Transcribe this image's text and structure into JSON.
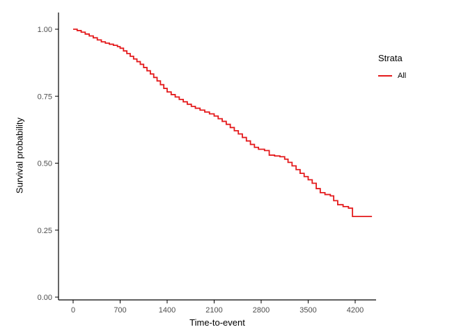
{
  "figure": {
    "background": "#ffffff"
  },
  "chart_data": {
    "type": "line",
    "subtype": "kaplan-meier-step",
    "title": "",
    "xlabel": "Time-to-event",
    "ylabel": "Survival probability",
    "xlim": [
      0,
      4450
    ],
    "ylim": [
      0,
      1
    ],
    "grid": false,
    "axis_color": "#000000",
    "tick_label_color": "#4d4d4d",
    "x_ticks": {
      "values": [
        0,
        700,
        1400,
        2100,
        2800,
        3500,
        4200
      ],
      "labels": [
        "0",
        "700",
        "1400",
        "2100",
        "2800",
        "3500",
        "4200"
      ]
    },
    "y_ticks": {
      "values": [
        0,
        0.25,
        0.5,
        0.75,
        1
      ],
      "labels": [
        "0.00",
        "0.25",
        "0.50",
        "0.75",
        "1.00"
      ]
    },
    "legend": {
      "title": "Strata",
      "position": "right",
      "items": [
        {
          "label": "All",
          "color": "#E41A1C"
        }
      ]
    },
    "series": [
      {
        "name": "All",
        "color": "#E41A1C",
        "step": "hv",
        "points": [
          [
            0,
            1.0
          ],
          [
            60,
            0.995
          ],
          [
            120,
            0.989
          ],
          [
            180,
            0.982
          ],
          [
            240,
            0.975
          ],
          [
            300,
            0.968
          ],
          [
            360,
            0.96
          ],
          [
            420,
            0.953
          ],
          [
            480,
            0.948
          ],
          [
            540,
            0.944
          ],
          [
            600,
            0.94
          ],
          [
            660,
            0.935
          ],
          [
            700,
            0.929
          ],
          [
            750,
            0.919
          ],
          [
            800,
            0.909
          ],
          [
            850,
            0.899
          ],
          [
            900,
            0.889
          ],
          [
            950,
            0.879
          ],
          [
            1000,
            0.869
          ],
          [
            1050,
            0.857
          ],
          [
            1100,
            0.845
          ],
          [
            1150,
            0.833
          ],
          [
            1200,
            0.82
          ],
          [
            1250,
            0.807
          ],
          [
            1300,
            0.793
          ],
          [
            1350,
            0.779
          ],
          [
            1400,
            0.766
          ],
          [
            1460,
            0.756
          ],
          [
            1520,
            0.747
          ],
          [
            1580,
            0.738
          ],
          [
            1640,
            0.729
          ],
          [
            1700,
            0.72
          ],
          [
            1760,
            0.712
          ],
          [
            1820,
            0.705
          ],
          [
            1890,
            0.698
          ],
          [
            1960,
            0.691
          ],
          [
            2030,
            0.684
          ],
          [
            2100,
            0.676
          ],
          [
            2160,
            0.666
          ],
          [
            2220,
            0.656
          ],
          [
            2280,
            0.645
          ],
          [
            2340,
            0.633
          ],
          [
            2400,
            0.621
          ],
          [
            2460,
            0.609
          ],
          [
            2520,
            0.596
          ],
          [
            2580,
            0.583
          ],
          [
            2640,
            0.57
          ],
          [
            2700,
            0.559
          ],
          [
            2760,
            0.552
          ],
          [
            2850,
            0.547
          ],
          [
            2920,
            0.53
          ],
          [
            3000,
            0.527
          ],
          [
            3080,
            0.524
          ],
          [
            3150,
            0.515
          ],
          [
            3200,
            0.503
          ],
          [
            3260,
            0.49
          ],
          [
            3320,
            0.476
          ],
          [
            3380,
            0.462
          ],
          [
            3440,
            0.45
          ],
          [
            3500,
            0.438
          ],
          [
            3560,
            0.425
          ],
          [
            3620,
            0.405
          ],
          [
            3680,
            0.39
          ],
          [
            3750,
            0.383
          ],
          [
            3830,
            0.378
          ],
          [
            3880,
            0.36
          ],
          [
            3940,
            0.345
          ],
          [
            4020,
            0.338
          ],
          [
            4100,
            0.332
          ],
          [
            4160,
            0.301
          ],
          [
            4450,
            0.301
          ]
        ]
      }
    ]
  }
}
